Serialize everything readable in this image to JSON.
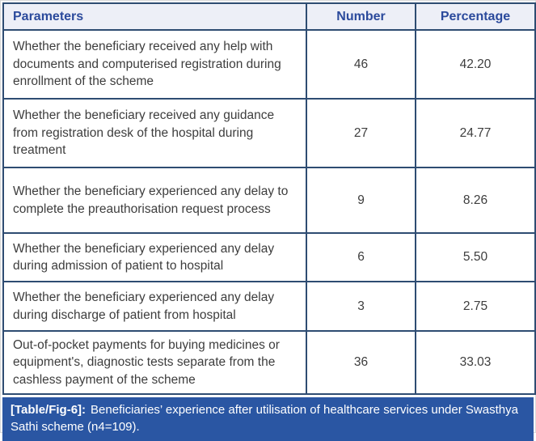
{
  "table": {
    "columns": {
      "parameters": "Parameters",
      "number": "Number",
      "percentage": "Percentage"
    },
    "rows": [
      {
        "parameter": "Whether the beneficiary received any help with documents and computerised registration during enrollment of the scheme",
        "number": "46",
        "percentage": "42.20"
      },
      {
        "parameter": "Whether the beneficiary received any guidance from registration desk of the hospital during treatment",
        "number": "27",
        "percentage": "24.77"
      },
      {
        "parameter": "Whether the beneficiary experienced any delay to complete the preauthorisation request process",
        "number": "9",
        "percentage": "8.26"
      },
      {
        "parameter": "Whether the beneficiary experienced any delay during admission of patient to hospital",
        "number": "6",
        "percentage": "5.50"
      },
      {
        "parameter": "Whether the beneficiary experienced any delay during discharge of patient from hospital",
        "number": "3",
        "percentage": "2.75"
      },
      {
        "parameter": "Out-of-pocket payments for buying medicines or equipment's, diagnostic tests separate from the cashless payment of the scheme",
        "number": "36",
        "percentage": "33.03"
      }
    ]
  },
  "caption": {
    "label": "[Table/Fig-6]:",
    "text": "Beneficiaries’ experience after utilisation of healthcare services under Swasthya Sathi scheme (n4=109)."
  },
  "colors": {
    "border_navy": "#2e4c72",
    "header_bg": "#edeff7",
    "header_text": "#2b4a9c",
    "body_text": "#3d3d3d",
    "caption_bg": "#2a56a3",
    "caption_text": "#ffffff"
  }
}
